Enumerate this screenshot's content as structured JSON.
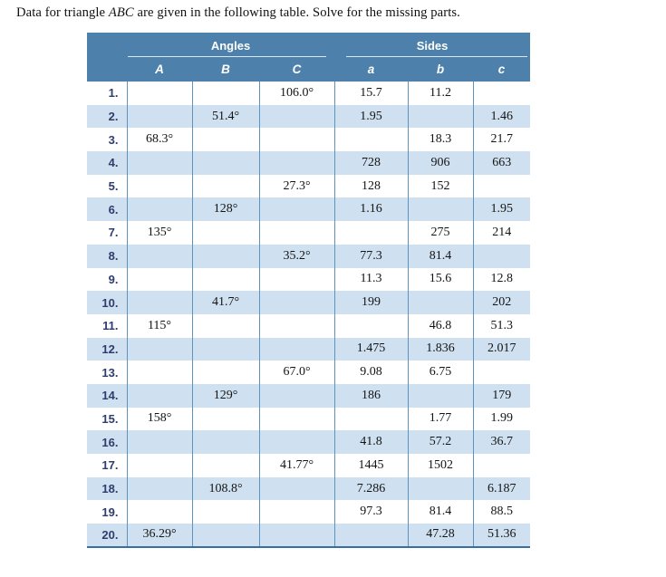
{
  "problem": {
    "text_prefix": "Data for triangle ",
    "text_italic": "ABC",
    "text_suffix": " are given in the following table. Solve for the missing parts."
  },
  "table": {
    "group_headers": {
      "angles": "Angles",
      "sides": "Sides"
    },
    "column_headers": {
      "A": "A",
      "B": "B",
      "C": "C",
      "a": "a",
      "b": "b",
      "c": "c"
    },
    "rows": [
      {
        "num": "1.",
        "A": "",
        "B": "",
        "C": "106.0°",
        "a": "15.7",
        "b": "11.2",
        "c": ""
      },
      {
        "num": "2.",
        "A": "",
        "B": "51.4°",
        "C": "",
        "a": "1.95",
        "b": "",
        "c": "1.46"
      },
      {
        "num": "3.",
        "A": "68.3°",
        "B": "",
        "C": "",
        "a": "",
        "b": "18.3",
        "c": "21.7"
      },
      {
        "num": "4.",
        "A": "",
        "B": "",
        "C": "",
        "a": "728",
        "b": "906",
        "c": "663"
      },
      {
        "num": "5.",
        "A": "",
        "B": "",
        "C": "27.3°",
        "a": "128",
        "b": "152",
        "c": ""
      },
      {
        "num": "6.",
        "A": "",
        "B": "128°",
        "C": "",
        "a": "1.16",
        "b": "",
        "c": "1.95"
      },
      {
        "num": "7.",
        "A": "135°",
        "B": "",
        "C": "",
        "a": "",
        "b": "275",
        "c": "214"
      },
      {
        "num": "8.",
        "A": "",
        "B": "",
        "C": "35.2°",
        "a": "77.3",
        "b": "81.4",
        "c": ""
      },
      {
        "num": "9.",
        "A": "",
        "B": "",
        "C": "",
        "a": "11.3",
        "b": "15.6",
        "c": "12.8"
      },
      {
        "num": "10.",
        "A": "",
        "B": "41.7°",
        "C": "",
        "a": "199",
        "b": "",
        "c": "202"
      },
      {
        "num": "11.",
        "A": "115°",
        "B": "",
        "C": "",
        "a": "",
        "b": "46.8",
        "c": "51.3"
      },
      {
        "num": "12.",
        "A": "",
        "B": "",
        "C": "",
        "a": "1.475",
        "b": "1.836",
        "c": "2.017"
      },
      {
        "num": "13.",
        "A": "",
        "B": "",
        "C": "67.0°",
        "a": "9.08",
        "b": "6.75",
        "c": ""
      },
      {
        "num": "14.",
        "A": "",
        "B": "129°",
        "C": "",
        "a": "186",
        "b": "",
        "c": "179"
      },
      {
        "num": "15.",
        "A": "158°",
        "B": "",
        "C": "",
        "a": "",
        "b": "1.77",
        "c": "1.99"
      },
      {
        "num": "16.",
        "A": "",
        "B": "",
        "C": "",
        "a": "41.8",
        "b": "57.2",
        "c": "36.7"
      },
      {
        "num": "17.",
        "A": "",
        "B": "",
        "C": "41.77°",
        "a": "1445",
        "b": "1502",
        "c": ""
      },
      {
        "num": "18.",
        "A": "",
        "B": "108.8°",
        "C": "",
        "a": "7.286",
        "b": "",
        "c": "6.187"
      },
      {
        "num": "19.",
        "A": "",
        "B": "",
        "C": "",
        "a": "97.3",
        "b": "81.4",
        "c": "88.5"
      },
      {
        "num": "20.",
        "A": "36.29°",
        "B": "",
        "C": "",
        "a": "",
        "b": "47.28",
        "c": "51.36"
      }
    ]
  },
  "colors": {
    "header_blue": "#4d80aa",
    "stripe_blue": "#cfe1f0",
    "divider_blue": "#5e93bd",
    "bottom_border_blue": "#3b6e9e",
    "row_number_navy": "#2e3d6e",
    "data_text": "#141414"
  }
}
